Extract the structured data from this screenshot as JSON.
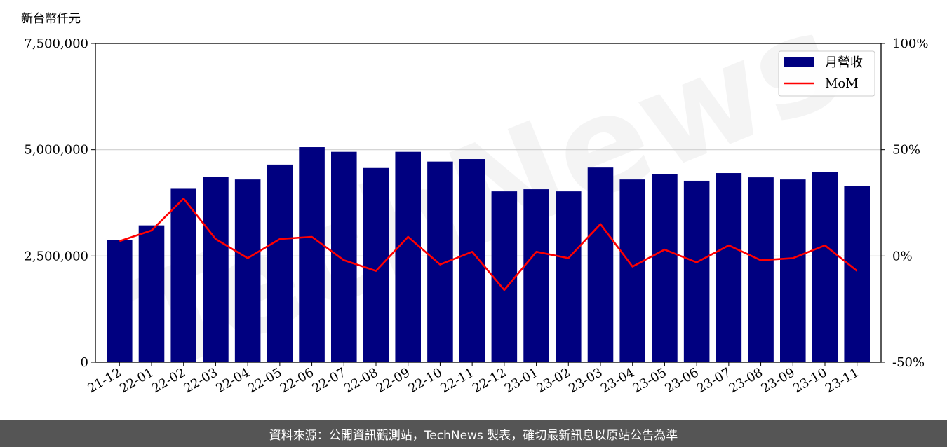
{
  "chart_data": {
    "type": "bar",
    "unit_label": "新台幣仟元",
    "categories": [
      "21-12",
      "22-01",
      "22-02",
      "22-03",
      "22-04",
      "22-05",
      "22-06",
      "22-07",
      "22-08",
      "22-09",
      "22-10",
      "22-11",
      "22-12",
      "23-01",
      "23-02",
      "23-03",
      "23-04",
      "23-05",
      "23-06",
      "23-07",
      "23-08",
      "23-09",
      "23-10",
      "23-11"
    ],
    "series": [
      {
        "name": "月營收",
        "type": "bar",
        "axis": "left",
        "color": "#000080",
        "values": [
          2880000,
          3220000,
          4080000,
          4360000,
          4300000,
          4650000,
          5060000,
          4950000,
          4570000,
          4950000,
          4720000,
          4780000,
          4020000,
          4070000,
          4020000,
          4580000,
          4300000,
          4420000,
          4270000,
          4450000,
          4350000,
          4300000,
          4480000,
          4150000
        ]
      },
      {
        "name": "MoM",
        "type": "line",
        "axis": "right",
        "color": "#ff0000",
        "values": [
          7,
          12,
          27,
          8,
          -1,
          8,
          9,
          -2,
          -7,
          9,
          -4,
          2,
          -16,
          2,
          -1,
          15,
          -5,
          3,
          -3,
          5,
          -2,
          -1,
          5,
          -7
        ]
      }
    ],
    "y_left": {
      "lim": [
        0,
        7500000
      ],
      "ticks": [
        0,
        2500000,
        5000000,
        7500000
      ],
      "tick_labels": [
        "0",
        "2,500,000",
        "5,000,000",
        "7,500,000"
      ]
    },
    "y_right": {
      "lim": [
        -50,
        100
      ],
      "ticks": [
        -50,
        0,
        50,
        100
      ],
      "tick_labels": [
        "-50%",
        "0%",
        "50%",
        "100%"
      ]
    },
    "grid": "horizontal",
    "legend_position": "top-right"
  },
  "watermark": "TechNews",
  "footer": {
    "text": "資料來源：公開資訊觀測站，TechNews 製表，確切最新訊息以原站公告為準"
  }
}
